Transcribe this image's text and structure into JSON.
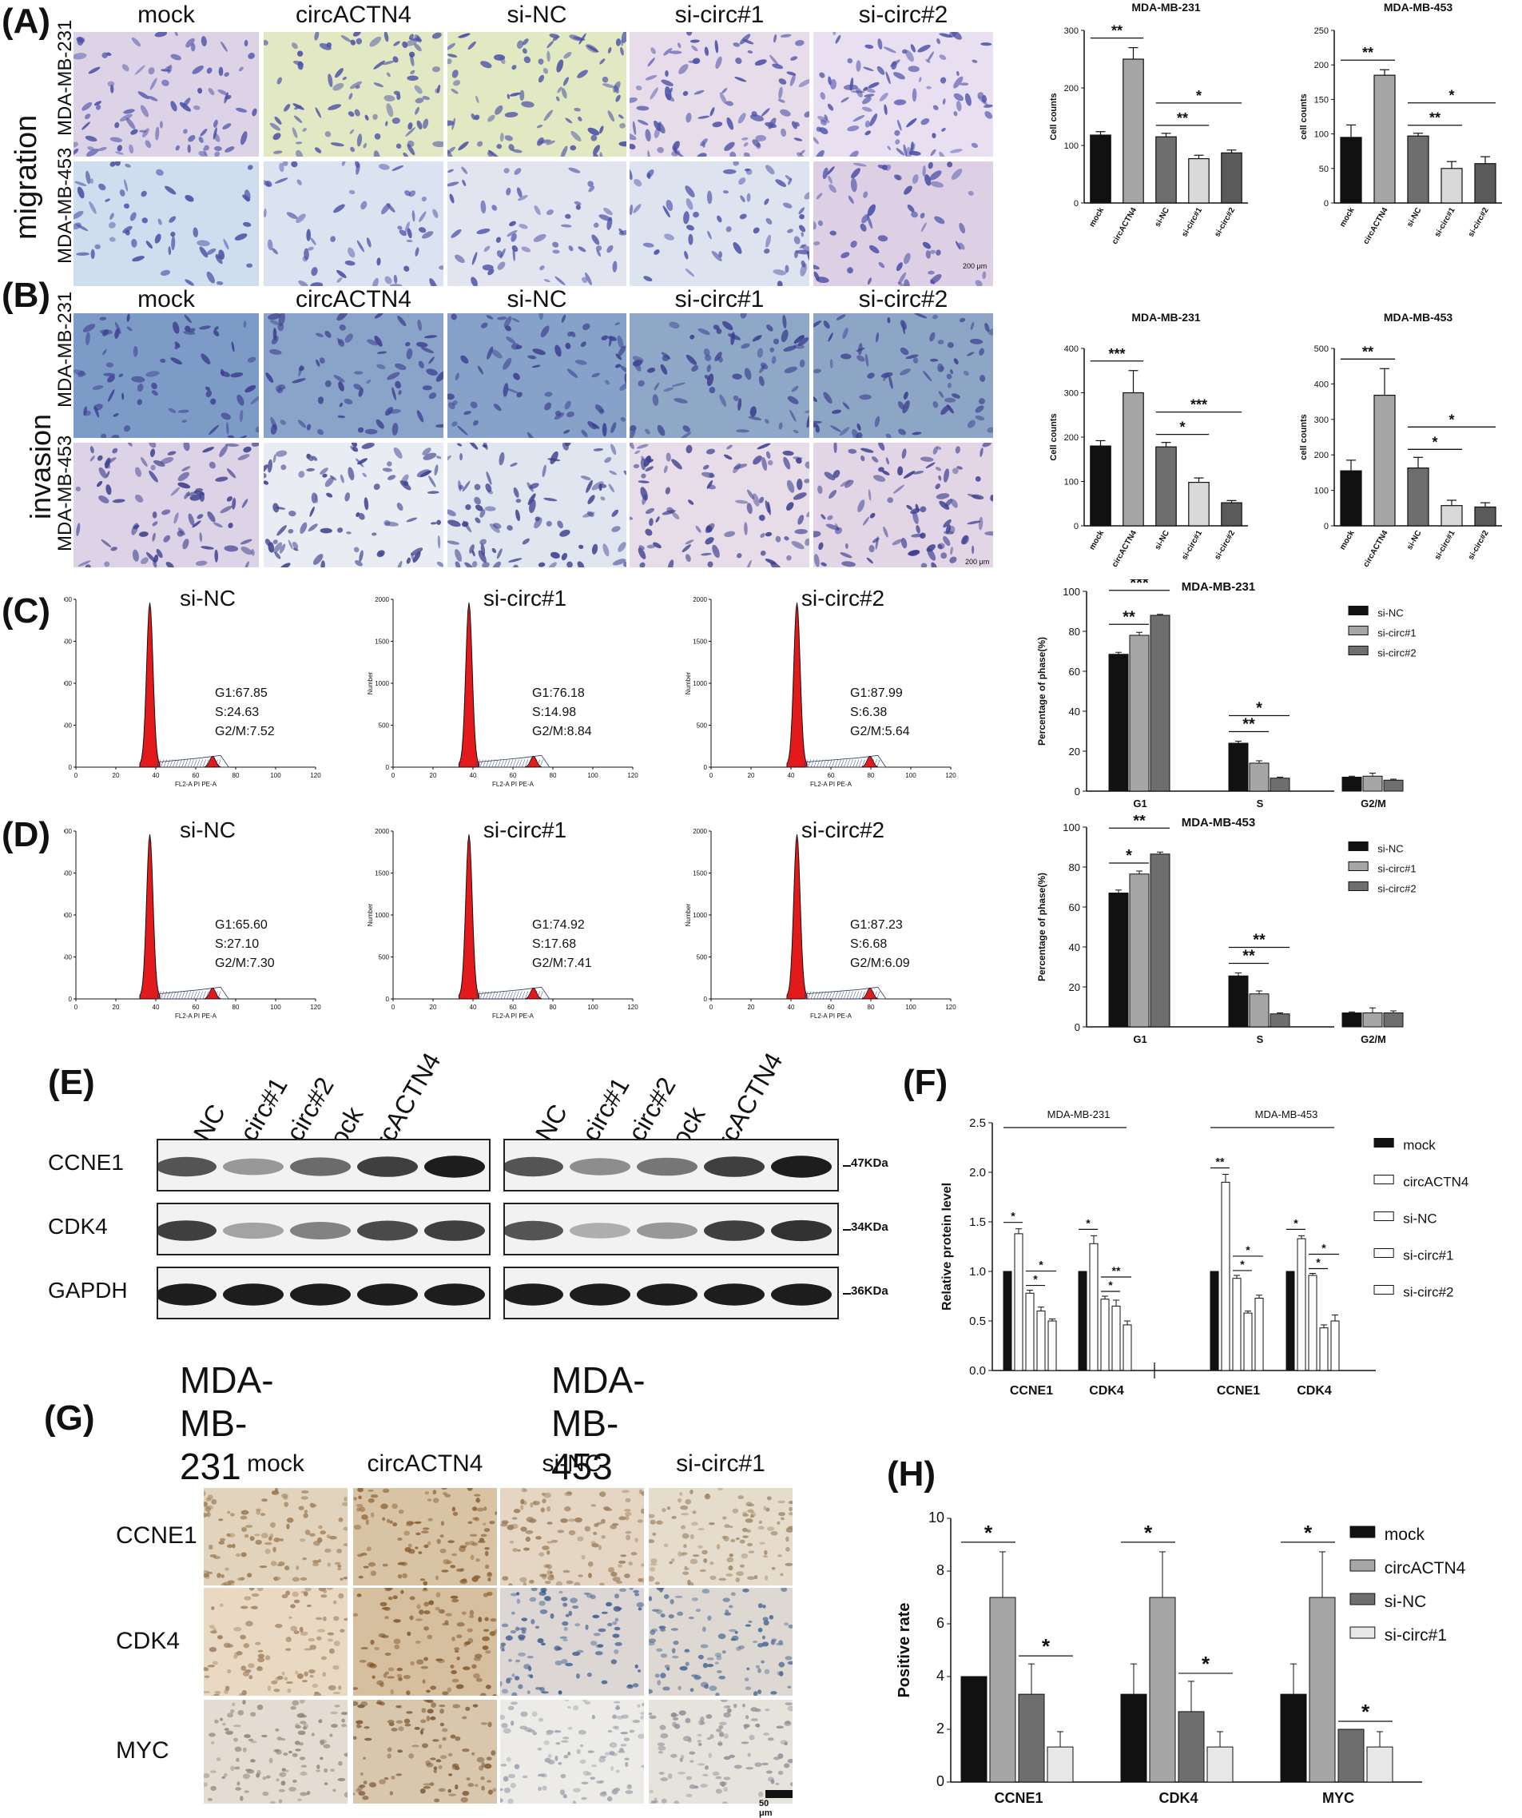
{
  "panels": {
    "A": "(A)",
    "B": "(B)",
    "C": "(C)",
    "D": "(D)",
    "E": "(E)",
    "F": "(F)",
    "G": "(G)",
    "H": "(H)"
  },
  "assay_groups": [
    "mock",
    "circACTN4",
    "si-NC",
    "si-circ#1",
    "si-circ#2"
  ],
  "migration": {
    "row_title": "migration",
    "rows": [
      "MDA-MB-231",
      "MDA-MB-453"
    ],
    "scale": "200 μm"
  },
  "invasion": {
    "row_title": "invasion",
    "rows": [
      "MDA-MB-231",
      "MDA-MB-453"
    ],
    "scale": "200 μm"
  },
  "flow": {
    "xlabel": "FL2-A PI PE-A",
    "ylabel": "Number",
    "xticks": [
      "0",
      "20",
      "40",
      "60",
      "80",
      "100",
      "120"
    ],
    "yticks": [
      "0",
      "500",
      "1000",
      "1500",
      "2000"
    ],
    "C": [
      {
        "title": "si-NC",
        "g1": "G1:67.85",
        "s": "S:24.63",
        "g2": "G2/M:7.52",
        "peak": 37
      },
      {
        "title": "si-circ#1",
        "g1": "G1:76.18",
        "s": "S:14.98",
        "g2": "G2/M:8.84",
        "peak": 38
      },
      {
        "title": "si-circ#2",
        "g1": "G1:87.99",
        "s": "S:6.38",
        "g2": "G2/M:5.64",
        "peak": 43
      }
    ],
    "D": [
      {
        "title": "si-NC",
        "g1": "G1:65.60",
        "s": "S:27.10",
        "g2": "G2/M:7.30",
        "peak": 37
      },
      {
        "title": "si-circ#1",
        "g1": "G1:74.92",
        "s": "S:17.68",
        "g2": "G2/M:7.41",
        "peak": 38
      },
      {
        "title": "si-circ#2",
        "g1": "G1:87.23",
        "s": "S:6.68",
        "g2": "G2/M:6.09",
        "peak": 43
      }
    ]
  },
  "western": {
    "lanes_231": [
      "si-NC",
      "si-circ#1",
      "si-circ#2",
      "mock",
      "circACTN4"
    ],
    "lanes_453": [
      "si-NC",
      "si-circ#1",
      "si-circ#2",
      "mock",
      "circACTN4"
    ],
    "rows": [
      "CCNE1",
      "CDK4",
      "GAPDH"
    ],
    "sizes": [
      "47KDa",
      "34KDa",
      "36KDa"
    ],
    "cell_lines": [
      "MDA-MB-231",
      "MDA-MB-453"
    ]
  },
  "ihc": {
    "cols": [
      "mock",
      "circACTN4",
      "si-NC",
      "si-circ#1"
    ],
    "rows": [
      "CCNE1",
      "CDK4",
      "MYC"
    ],
    "scale": "50 μm"
  },
  "colors": {
    "black": "#111111",
    "gray1": "#a6a6a6",
    "gray2": "#6e6e6e",
    "light": "#d9d9d9",
    "red": "#e31a1c"
  },
  "chart_data": [
    {
      "id": "A1",
      "type": "bar",
      "title": "MDA-MB-231",
      "ylabel": "Cell counts",
      "categories": [
        "mock",
        "circACTN4",
        "si-NC",
        "si-circ#1",
        "si-circ#2"
      ],
      "values": [
        118,
        250,
        115,
        77,
        87
      ],
      "errors": [
        6,
        20,
        6,
        6,
        5
      ],
      "ylim": [
        0,
        300
      ],
      "yticks": [
        0,
        100,
        200,
        300
      ],
      "sig": [
        {
          "a": 0,
          "b": 1,
          "t": "**"
        },
        {
          "a": 2,
          "b": 3,
          "t": "**"
        },
        {
          "a": 2,
          "b": 4,
          "t": "*"
        }
      ]
    },
    {
      "id": "A2",
      "type": "bar",
      "title": "MDA-MB-453",
      "ylabel": "cell counts",
      "categories": [
        "mock",
        "circACTN4",
        "si-NC",
        "si-circ#1",
        "si-circ#2"
      ],
      "values": [
        95,
        185,
        97,
        50,
        57
      ],
      "errors": [
        18,
        8,
        4,
        10,
        10
      ],
      "ylim": [
        0,
        250
      ],
      "yticks": [
        0,
        50,
        100,
        150,
        200,
        250
      ],
      "sig": [
        {
          "a": 0,
          "b": 1,
          "t": "**"
        },
        {
          "a": 2,
          "b": 3,
          "t": "**"
        },
        {
          "a": 2,
          "b": 4,
          "t": "*"
        }
      ]
    },
    {
      "id": "B1",
      "type": "bar",
      "title": "MDA-MB-231",
      "ylabel": "Cell counts",
      "categories": [
        "mock",
        "circACTN4",
        "si-NC",
        "si-circ#1",
        "si-circ#2"
      ],
      "values": [
        180,
        300,
        178,
        98,
        52
      ],
      "errors": [
        12,
        50,
        10,
        10,
        5
      ],
      "ylim": [
        0,
        400
      ],
      "yticks": [
        0,
        100,
        200,
        300,
        400
      ],
      "sig": [
        {
          "a": 0,
          "b": 1,
          "t": "***"
        },
        {
          "a": 2,
          "b": 3,
          "t": "*"
        },
        {
          "a": 2,
          "b": 4,
          "t": "***"
        }
      ]
    },
    {
      "id": "B2",
      "type": "bar",
      "title": "MDA-MB-453",
      "ylabel": "cell counts",
      "categories": [
        "mock",
        "circACTN4",
        "si-NC",
        "si-circ#1",
        "si-circ#2"
      ],
      "values": [
        155,
        368,
        163,
        57,
        53
      ],
      "errors": [
        30,
        75,
        30,
        15,
        12
      ],
      "ylim": [
        0,
        500
      ],
      "yticks": [
        0,
        100,
        200,
        300,
        400,
        500
      ],
      "sig": [
        {
          "a": 0,
          "b": 1,
          "t": "**"
        },
        {
          "a": 2,
          "b": 3,
          "t": "*"
        },
        {
          "a": 2,
          "b": 4,
          "t": "*"
        }
      ]
    },
    {
      "id": "C",
      "type": "bar",
      "title": "MDA-MB-231",
      "ylabel": "Percentage of phase(%)",
      "categories": [
        "G1",
        "S",
        "G2/M"
      ],
      "ylim": [
        0,
        100
      ],
      "yticks": [
        0,
        20,
        40,
        60,
        80,
        100
      ],
      "series": [
        {
          "name": "si-NC",
          "values": [
            68.5,
            24,
            7
          ],
          "errors": [
            1,
            1,
            0.5
          ]
        },
        {
          "name": "si-circ#1",
          "values": [
            78,
            14,
            7.5
          ],
          "errors": [
            1.5,
            1.2,
            1.5
          ]
        },
        {
          "name": "si-circ#2",
          "values": [
            88,
            6.5,
            5.5
          ],
          "errors": [
            0.5,
            0.5,
            0.5
          ]
        }
      ],
      "sig": [
        {
          "g": 0,
          "a": 0,
          "b": 1,
          "t": "**"
        },
        {
          "g": 0,
          "a": 0,
          "b": 2,
          "t": "***"
        },
        {
          "g": 1,
          "a": 0,
          "b": 1,
          "t": "**"
        },
        {
          "g": 1,
          "a": 0,
          "b": 2,
          "t": "*"
        }
      ]
    },
    {
      "id": "D",
      "type": "bar",
      "title": "MDA-MB-453",
      "ylabel": "Percentage of phase(%)",
      "categories": [
        "G1",
        "S",
        "G2/M"
      ],
      "ylim": [
        0,
        100
      ],
      "yticks": [
        0,
        20,
        40,
        60,
        80,
        100
      ],
      "series": [
        {
          "name": "si-NC",
          "values": [
            67,
            25.5,
            7
          ],
          "errors": [
            1.5,
            1.5,
            0.5
          ]
        },
        {
          "name": "si-circ#1",
          "values": [
            76.5,
            16.5,
            7
          ],
          "errors": [
            1.5,
            1.5,
            2.5
          ]
        },
        {
          "name": "si-circ#2",
          "values": [
            86.5,
            6.5,
            7
          ],
          "errors": [
            1,
            0.5,
            1
          ]
        }
      ],
      "sig": [
        {
          "g": 0,
          "a": 0,
          "b": 1,
          "t": "*"
        },
        {
          "g": 0,
          "a": 0,
          "b": 2,
          "t": "**"
        },
        {
          "g": 1,
          "a": 0,
          "b": 1,
          "t": "**"
        },
        {
          "g": 1,
          "a": 0,
          "b": 2,
          "t": "**"
        }
      ]
    },
    {
      "id": "F",
      "type": "bar",
      "ylabel": "Relative protein level",
      "group_titles": [
        "MDA-MB-231",
        "MDA-MB-453"
      ],
      "categories": [
        "CCNE1",
        "CDK4",
        "CCNE1",
        "CDK4"
      ],
      "ylim": [
        0,
        2.5
      ],
      "yticks": [
        "0.0",
        "0.5",
        "1.0",
        "1.5",
        "2.0",
        "2.5"
      ],
      "series": [
        {
          "name": "mock",
          "values": [
            1.0,
            1.0,
            1.0,
            1.0
          ],
          "errors": [
            0,
            0,
            0,
            0
          ]
        },
        {
          "name": "circACTN4",
          "values": [
            1.38,
            1.28,
            1.9,
            1.33
          ],
          "errors": [
            0.05,
            0.08,
            0.08,
            0.03
          ]
        },
        {
          "name": "si-NC",
          "values": [
            0.78,
            0.72,
            0.93,
            0.96
          ],
          "errors": [
            0.03,
            0.03,
            0.03,
            0.02
          ]
        },
        {
          "name": "si-circ#1",
          "values": [
            0.6,
            0.65,
            0.58,
            0.43
          ],
          "errors": [
            0.04,
            0.06,
            0.02,
            0.03
          ]
        },
        {
          "name": "si-circ#2",
          "values": [
            0.5,
            0.46,
            0.73,
            0.5
          ],
          "errors": [
            0.02,
            0.04,
            0.03,
            0.06
          ]
        }
      ],
      "sig": [
        {
          "g": 0,
          "a": 0,
          "b": 1,
          "t": "*"
        },
        {
          "g": 0,
          "a": 2,
          "b": 3,
          "t": "*"
        },
        {
          "g": 0,
          "a": 2,
          "b": 4,
          "t": "*"
        },
        {
          "g": 1,
          "a": 0,
          "b": 1,
          "t": "*"
        },
        {
          "g": 1,
          "a": 2,
          "b": 3,
          "t": "*"
        },
        {
          "g": 1,
          "a": 2,
          "b": 4,
          "t": "**"
        },
        {
          "g": 2,
          "a": 0,
          "b": 1,
          "t": "**"
        },
        {
          "g": 2,
          "a": 2,
          "b": 3,
          "t": "*"
        },
        {
          "g": 2,
          "a": 2,
          "b": 4,
          "t": "*"
        },
        {
          "g": 3,
          "a": 0,
          "b": 1,
          "t": "*"
        },
        {
          "g": 3,
          "a": 2,
          "b": 3,
          "t": "*"
        },
        {
          "g": 3,
          "a": 2,
          "b": 4,
          "t": "*"
        }
      ]
    },
    {
      "id": "H",
      "type": "bar",
      "ylabel": "Positive rate",
      "categories": [
        "CCNE1",
        "CDK4",
        "MYC"
      ],
      "ylim": [
        0,
        10
      ],
      "yticks": [
        0,
        2,
        4,
        6,
        8,
        10
      ],
      "series": [
        {
          "name": "mock",
          "values": [
            4,
            3.33,
            3.33
          ],
          "errors": [
            0,
            1.15,
            1.15
          ]
        },
        {
          "name": "circACTN4",
          "values": [
            7,
            7,
            7
          ],
          "errors": [
            1.73,
            1.73,
            1.73
          ]
        },
        {
          "name": "si-NC",
          "values": [
            3.33,
            2.67,
            2
          ],
          "errors": [
            1.15,
            1.15,
            0
          ]
        },
        {
          "name": "si-circ#1",
          "values": [
            1.33,
            1.33,
            1.33
          ],
          "errors": [
            0.58,
            0.58,
            0.58
          ]
        }
      ],
      "sig": [
        {
          "g": 0,
          "a": 0,
          "b": 1,
          "t": "*"
        },
        {
          "g": 0,
          "a": 2,
          "b": 3,
          "t": "*"
        },
        {
          "g": 1,
          "a": 0,
          "b": 1,
          "t": "*"
        },
        {
          "g": 1,
          "a": 2,
          "b": 3,
          "t": "*"
        },
        {
          "g": 2,
          "a": 0,
          "b": 1,
          "t": "*"
        },
        {
          "g": 2,
          "a": 2,
          "b": 3,
          "t": "*"
        }
      ]
    }
  ]
}
